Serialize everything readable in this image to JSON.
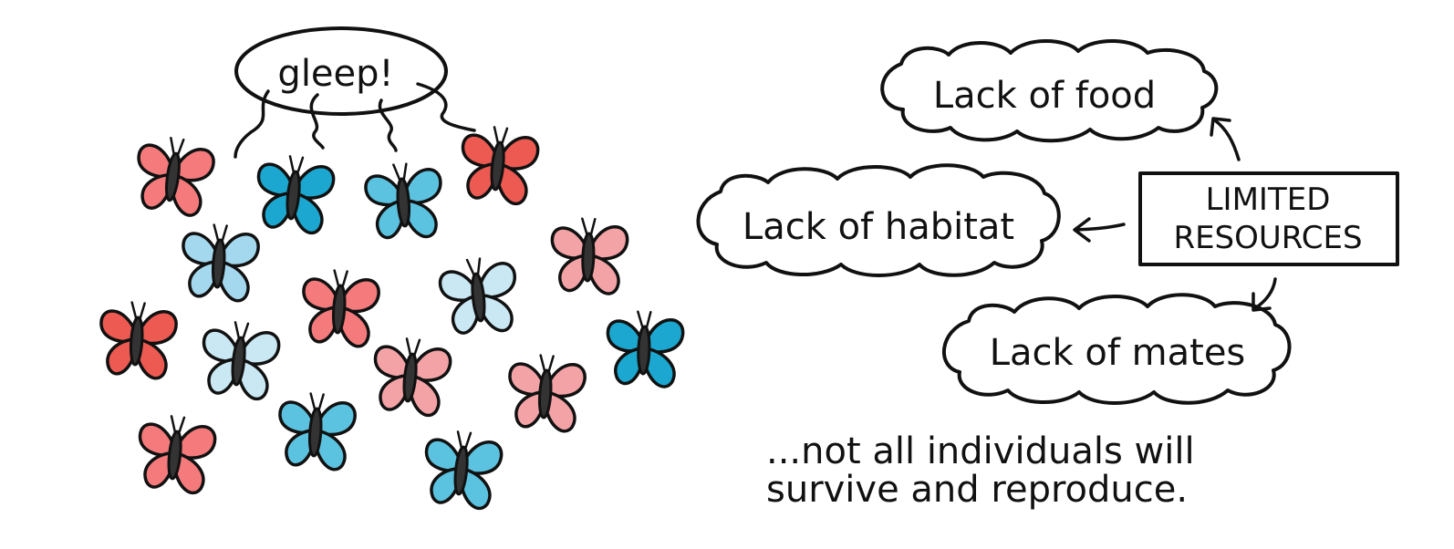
{
  "speech_bubble": {
    "text": "gleep!"
  },
  "clouds": {
    "food": "Lack of food",
    "habitat": "Lack of habitat",
    "mates": "Lack of mates"
  },
  "center_box": {
    "line1": "LIMITED",
    "line2": "RESOURCES"
  },
  "caption": {
    "line1": "...not all individuals will",
    "line2": "survive and reproduce."
  },
  "colors": {
    "ink": "#111111",
    "body": "#333333",
    "red": "#ec5a52",
    "coral": "#f47a7b",
    "pink": "#f3a2a6",
    "teal": "#1ba7cf",
    "blue": "#5bc2df",
    "light_blue": "#a4d8ee",
    "pale_blue": "#c9e8f3"
  },
  "butterflies": [
    {
      "color": "coral"
    },
    {
      "color": "teal"
    },
    {
      "color": "blue"
    },
    {
      "color": "red"
    },
    {
      "color": "light_blue"
    },
    {
      "color": "pink"
    },
    {
      "color": "coral"
    },
    {
      "color": "pale_blue"
    },
    {
      "color": "red"
    },
    {
      "color": "pale_blue"
    },
    {
      "color": "pink"
    },
    {
      "color": "pink"
    },
    {
      "color": "teal"
    },
    {
      "color": "coral"
    },
    {
      "color": "blue"
    },
    {
      "color": "blue"
    }
  ]
}
